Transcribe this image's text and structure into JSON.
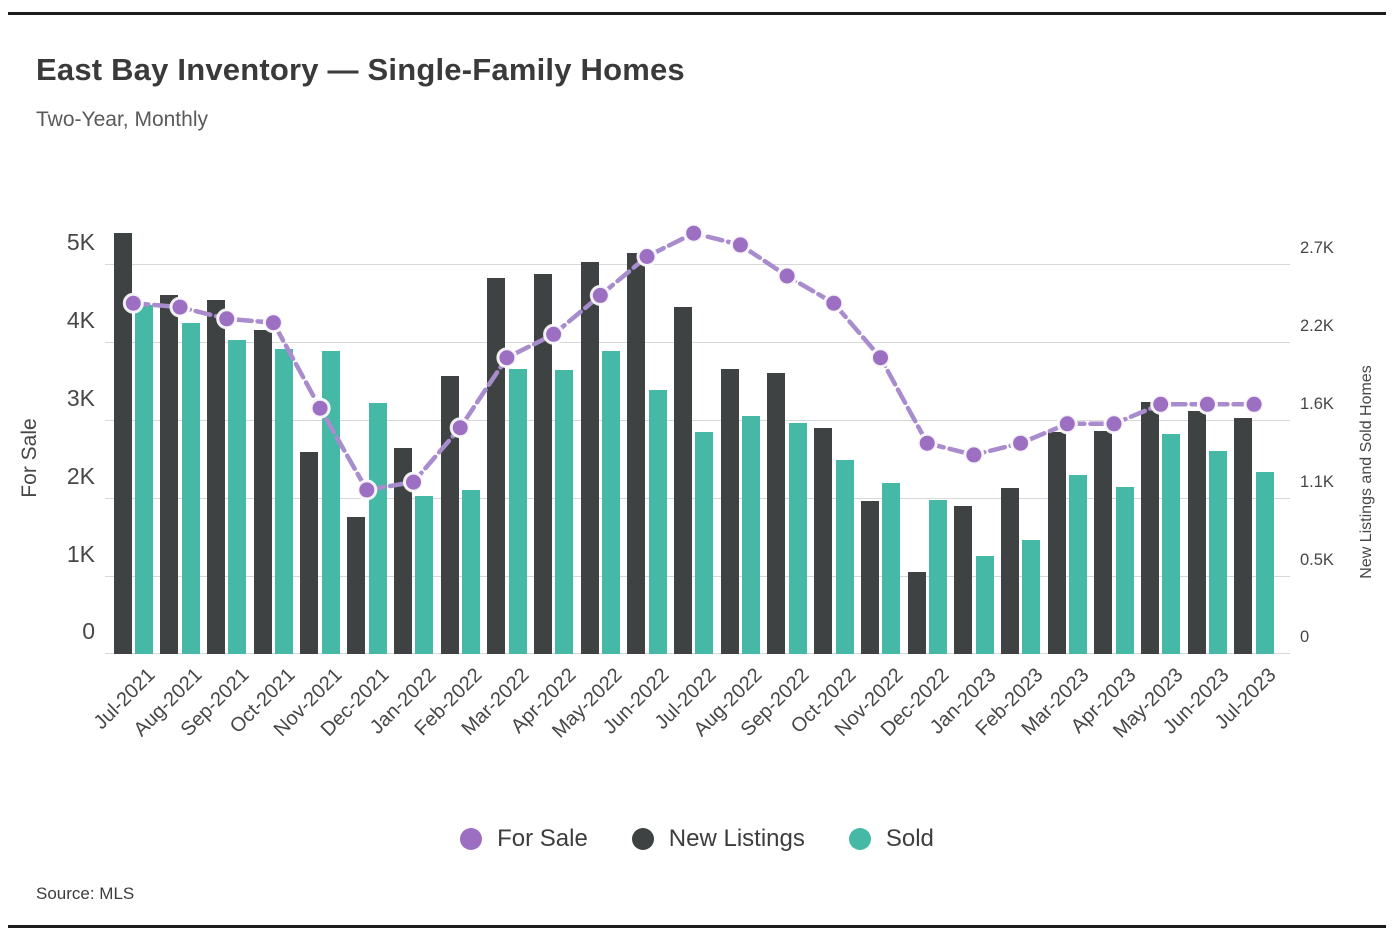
{
  "page": {
    "title": "East Bay Inventory — Single-Family Homes",
    "subtitle": "Two-Year, Monthly",
    "source": "Source: MLS"
  },
  "legend": {
    "items": [
      {
        "label": "For Sale",
        "color": "#9c6fc2"
      },
      {
        "label": "New Listings",
        "color": "#3f4242"
      },
      {
        "label": "Sold",
        "color": "#45b8a6"
      }
    ]
  },
  "chart_data": {
    "type": "combo",
    "title": "East Bay Inventory — Single-Family Homes",
    "subtitle": "Two-Year, Monthly",
    "grid": true,
    "legend_position": "bottom",
    "categories": [
      "Jul-2021",
      "Aug-2021",
      "Sep-2021",
      "Oct-2021",
      "Nov-2021",
      "Dec-2021",
      "Jan-2022",
      "Feb-2022",
      "Mar-2022",
      "Apr-2022",
      "May-2022",
      "Jun-2022",
      "Jul-2022",
      "Aug-2022",
      "Sep-2022",
      "Oct-2022",
      "Nov-2022",
      "Dec-2022",
      "Jan-2023",
      "Feb-2023",
      "Mar-2023",
      "Apr-2023",
      "May-2023",
      "Jun-2023",
      "Jul-2023"
    ],
    "series": [
      {
        "name": "For Sale",
        "type": "line",
        "axis": "left",
        "color": "#a88ccd",
        "marker_color": "#9c6fc2",
        "values": [
          4500,
          4450,
          4300,
          4250,
          3150,
          2100,
          2200,
          2900,
          3800,
          4100,
          4600,
          5100,
          5400,
          5250,
          4850,
          4500,
          3800,
          2700,
          2550,
          2700,
          2950,
          2950,
          3200,
          3200,
          3200
        ]
      },
      {
        "name": "New Listings",
        "type": "bar",
        "axis": "right",
        "color": "#3f4242",
        "values": [
          2920,
          2490,
          2460,
          2250,
          1400,
          950,
          1430,
          1930,
          2610,
          2640,
          2720,
          2780,
          2410,
          1980,
          1950,
          1570,
          1060,
          570,
          1030,
          1150,
          1540,
          1550,
          1750,
          1690,
          1640
        ]
      },
      {
        "name": "Sold",
        "type": "bar",
        "axis": "right",
        "color": "#45b8a6",
        "values": [
          2420,
          2300,
          2180,
          2120,
          2100,
          1740,
          1100,
          1140,
          1980,
          1970,
          2100,
          1830,
          1540,
          1650,
          1600,
          1350,
          1190,
          1070,
          680,
          790,
          1240,
          1160,
          1530,
          1410,
          1260
        ]
      }
    ],
    "left_axis": {
      "label": "For Sale",
      "min": 0,
      "max": 5000,
      "tick_values": [
        0,
        1000,
        2000,
        3000,
        4000,
        5000
      ],
      "tick_labels": [
        "0",
        "1K",
        "2K",
        "3K",
        "4K",
        "5K"
      ]
    },
    "right_axis": {
      "label": "New Listings and Sold Homes",
      "min": 0,
      "max": 2700,
      "tick_labels_at_same_gridlines": [
        "0",
        "0.5K",
        "1.1K",
        "1.6K",
        "2.2K",
        "2.7K"
      ]
    },
    "gridline_color": "#d8d8d8"
  }
}
